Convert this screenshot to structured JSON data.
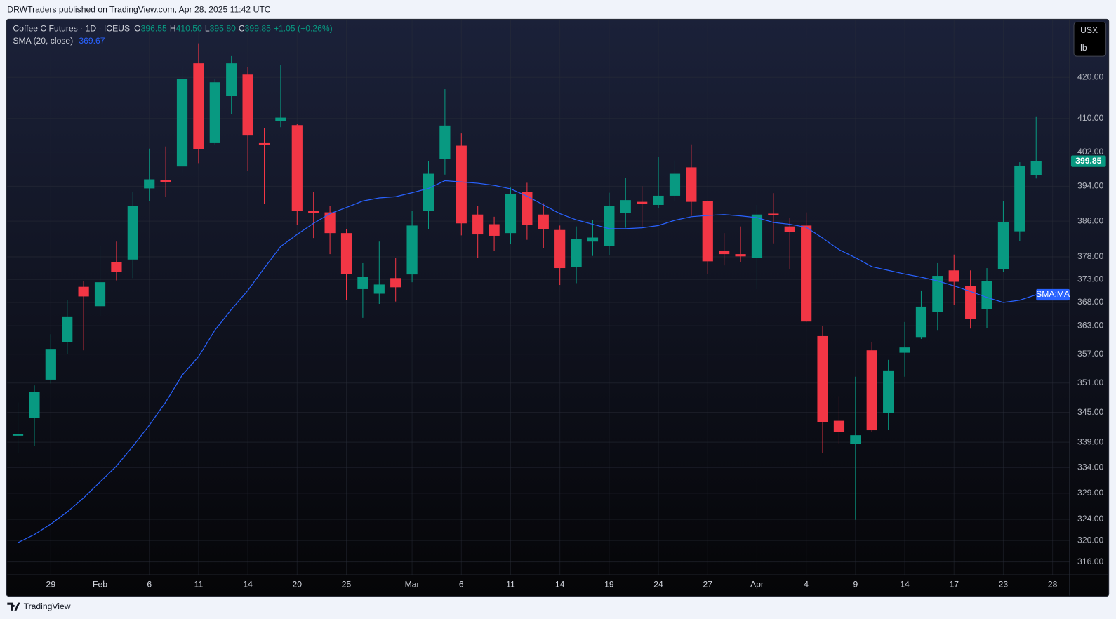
{
  "header": "DRWTraders published on TradingView.com, Apr 28, 2025 11:42 UTC",
  "footer": "TradingView",
  "chart_data": {
    "type": "candlestick",
    "title": "Coffee C Futures · 1D · ICEUS",
    "ohlc_keys": [
      "O",
      "H",
      "L",
      "C"
    ],
    "ohlc_labels": {
      "open": "396.55",
      "high": "410.50",
      "low": "395.80",
      "close": "399.85"
    },
    "change_label": "+1.05 (+0.26%)",
    "unit_labels": [
      "USX",
      "lb"
    ],
    "categories": [
      null,
      null,
      "29",
      null,
      null,
      "Feb",
      null,
      null,
      "6",
      null,
      null,
      "11",
      null,
      null,
      "14",
      null,
      null,
      "20",
      null,
      null,
      "25",
      null,
      null,
      null,
      "Mar",
      null,
      null,
      "6",
      null,
      null,
      "11",
      null,
      null,
      "14",
      null,
      null,
      "19",
      null,
      null,
      "24",
      null,
      null,
      "27",
      null,
      null,
      "Apr",
      null,
      null,
      "4",
      null,
      null,
      "9",
      null,
      null,
      "14",
      null,
      null,
      "17",
      null,
      null,
      "23",
      null,
      null,
      "28"
    ],
    "open": [
      340.3,
      343.9,
      351.7,
      359.5,
      371.4,
      367.2,
      376.9,
      377.4,
      393.5,
      395.4,
      398.6,
      423.5,
      404.1,
      415.4,
      420.7,
      404.1,
      409.3,
      408.4,
      388.4,
      388.0,
      383.3,
      370.9,
      369.9,
      373.3,
      374.1,
      388.3,
      400.3,
      403.5,
      387.5,
      385.3,
      383.3,
      392.7,
      387.5,
      384.0,
      375.8,
      381.4,
      380.4,
      387.8,
      390.4,
      389.7,
      391.8,
      398.4,
      390.6,
      379.4,
      378.6,
      377.7,
      387.7,
      384.8,
      385.0,
      360.8,
      343.3,
      338.7,
      357.8,
      344.9,
      357.3,
      360.6,
      366.0,
      375.0,
      371.6,
      366.5,
      375.3,
      383.7,
      396.55,
      null
    ],
    "high": [
      347.0,
      350.5,
      361.2,
      368.5,
      372.7,
      380.4,
      381.4,
      392.7,
      402.8,
      403.3,
      422.8,
      428.5,
      419.6,
      425.3,
      422.5,
      407.6,
      423.0,
      408.6,
      392.7,
      389.4,
      384.2,
      376.6,
      381.4,
      377.8,
      388.3,
      399.9,
      417.1,
      406.4,
      389.4,
      387.0,
      393.7,
      394.8,
      390.1,
      385.0,
      384.8,
      386.2,
      392.5,
      396.0,
      394.0,
      400.9,
      400.0,
      403.8,
      390.7,
      383.3,
      384.8,
      389.7,
      392.4,
      386.8,
      388.0,
      362.9,
      348.3,
      352.3,
      359.6,
      355.8,
      363.8,
      370.6,
      376.6,
      378.5,
      375.0,
      375.5,
      390.6,
      399.6,
      410.5,
      null
    ],
    "low": [
      336.8,
      338.3,
      350.9,
      357.0,
      357.8,
      365.1,
      372.8,
      373.3,
      390.6,
      391.5,
      397.0,
      399.4,
      403.8,
      411.1,
      397.5,
      389.9,
      407.9,
      385.2,
      382.2,
      378.6,
      368.6,
      364.7,
      367.7,
      368.2,
      372.4,
      384.2,
      396.7,
      382.8,
      377.8,
      379.4,
      380.8,
      381.8,
      379.9,
      371.8,
      372.2,
      378.2,
      378.3,
      384.5,
      384.8,
      389.0,
      390.6,
      387.2,
      374.2,
      376.1,
      376.9,
      370.9,
      381.0,
      375.3,
      363.8,
      336.9,
      338.6,
      323.9,
      341.0,
      341.5,
      352.3,
      360.2,
      362.1,
      367.4,
      362.4,
      362.5,
      374.7,
      381.5,
      395.8,
      null
    ],
    "close": [
      340.7,
      349.1,
      358.1,
      365.0,
      369.3,
      372.4,
      374.7,
      389.4,
      395.6,
      395.0,
      419.6,
      402.7,
      418.8,
      423.5,
      405.9,
      403.6,
      410.2,
      388.4,
      387.8,
      383.3,
      374.2,
      373.6,
      371.9,
      371.3,
      385.0,
      396.9,
      408.3,
      385.5,
      383.0,
      382.7,
      392.2,
      385.2,
      384.2,
      375.5,
      382.0,
      382.3,
      389.5,
      390.8,
      389.9,
      391.8,
      396.9,
      390.4,
      377.0,
      378.6,
      378.1,
      387.5,
      387.3,
      383.6,
      363.9,
      343.0,
      341.0,
      340.4,
      341.4,
      353.6,
      358.4,
      367.1,
      373.8,
      372.5,
      364.5,
      372.7,
      385.7,
      398.8,
      399.85,
      null
    ],
    "up_color": "#089981",
    "down_color": "#f23645",
    "sma": {
      "name": "SMA (20, close)",
      "color": "#2962ff",
      "last_label": "369.67",
      "tag": "SMA:MA",
      "values": [
        319.6,
        321.1,
        323.1,
        325.4,
        328.1,
        331.2,
        334.3,
        338.2,
        342.4,
        347.1,
        352.6,
        356.5,
        362.1,
        366.5,
        370.6,
        375.5,
        380.3,
        383.0,
        385.5,
        387.7,
        389.1,
        390.6,
        391.3,
        391.6,
        392.5,
        393.5,
        395.3,
        395.0,
        394.7,
        394.2,
        393.4,
        391.7,
        389.7,
        387.7,
        386.3,
        385.3,
        384.3,
        384.3,
        384.5,
        385.0,
        386.2,
        387.0,
        387.3,
        387.5,
        387.2,
        386.8,
        385.7,
        385.3,
        384.6,
        382.2,
        379.6,
        377.8,
        375.8,
        375.0,
        374.2,
        373.5,
        372.7,
        371.6,
        370.4,
        369.1,
        368.0,
        368.5,
        369.67,
        null
      ]
    },
    "ylim": [
      313.6,
      434.6
    ],
    "log": true,
    "grid": true,
    "yticks": [
      {
        "value": 316,
        "label": "316.00"
      },
      {
        "value": 320,
        "label": "320.00"
      },
      {
        "value": 324,
        "label": "324.00"
      },
      {
        "value": 329,
        "label": "329.00"
      },
      {
        "value": 334,
        "label": "334.00"
      },
      {
        "value": 339,
        "label": "339.00"
      },
      {
        "value": 345,
        "label": "345.00"
      },
      {
        "value": 351,
        "label": "351.00"
      },
      {
        "value": 357,
        "label": "357.00"
      },
      {
        "value": 363,
        "label": "363.00"
      },
      {
        "value": 368,
        "label": "368.00"
      },
      {
        "value": 373,
        "label": "373.00"
      },
      {
        "value": 378,
        "label": "378.00"
      },
      {
        "value": 386,
        "label": "386.00"
      },
      {
        "value": 394,
        "label": "394.00"
      },
      {
        "value": 402,
        "label": "402.00"
      },
      {
        "value": 410,
        "label": "410.00"
      },
      {
        "value": 420,
        "label": "420.00"
      }
    ]
  }
}
